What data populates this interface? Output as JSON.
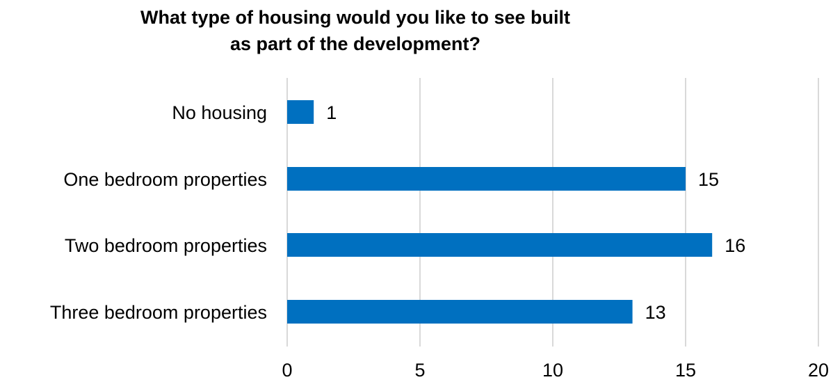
{
  "chart_data": {
    "type": "bar",
    "orientation": "horizontal",
    "title_lines": [
      "What type of housing would you like to see built",
      "as part of the development?"
    ],
    "categories": [
      "No housing",
      "One bedroom properties",
      "Two bedroom properties",
      "Three bedroom properties"
    ],
    "values": [
      1,
      15,
      16,
      13
    ],
    "xlim": [
      0,
      20
    ],
    "xticks": [
      "0",
      "5",
      "10",
      "15",
      "20"
    ],
    "grid": "vertical",
    "legend": "none",
    "data_labels": true,
    "bar_color": "#0070C0",
    "grid_color": "#D9D9D9"
  }
}
